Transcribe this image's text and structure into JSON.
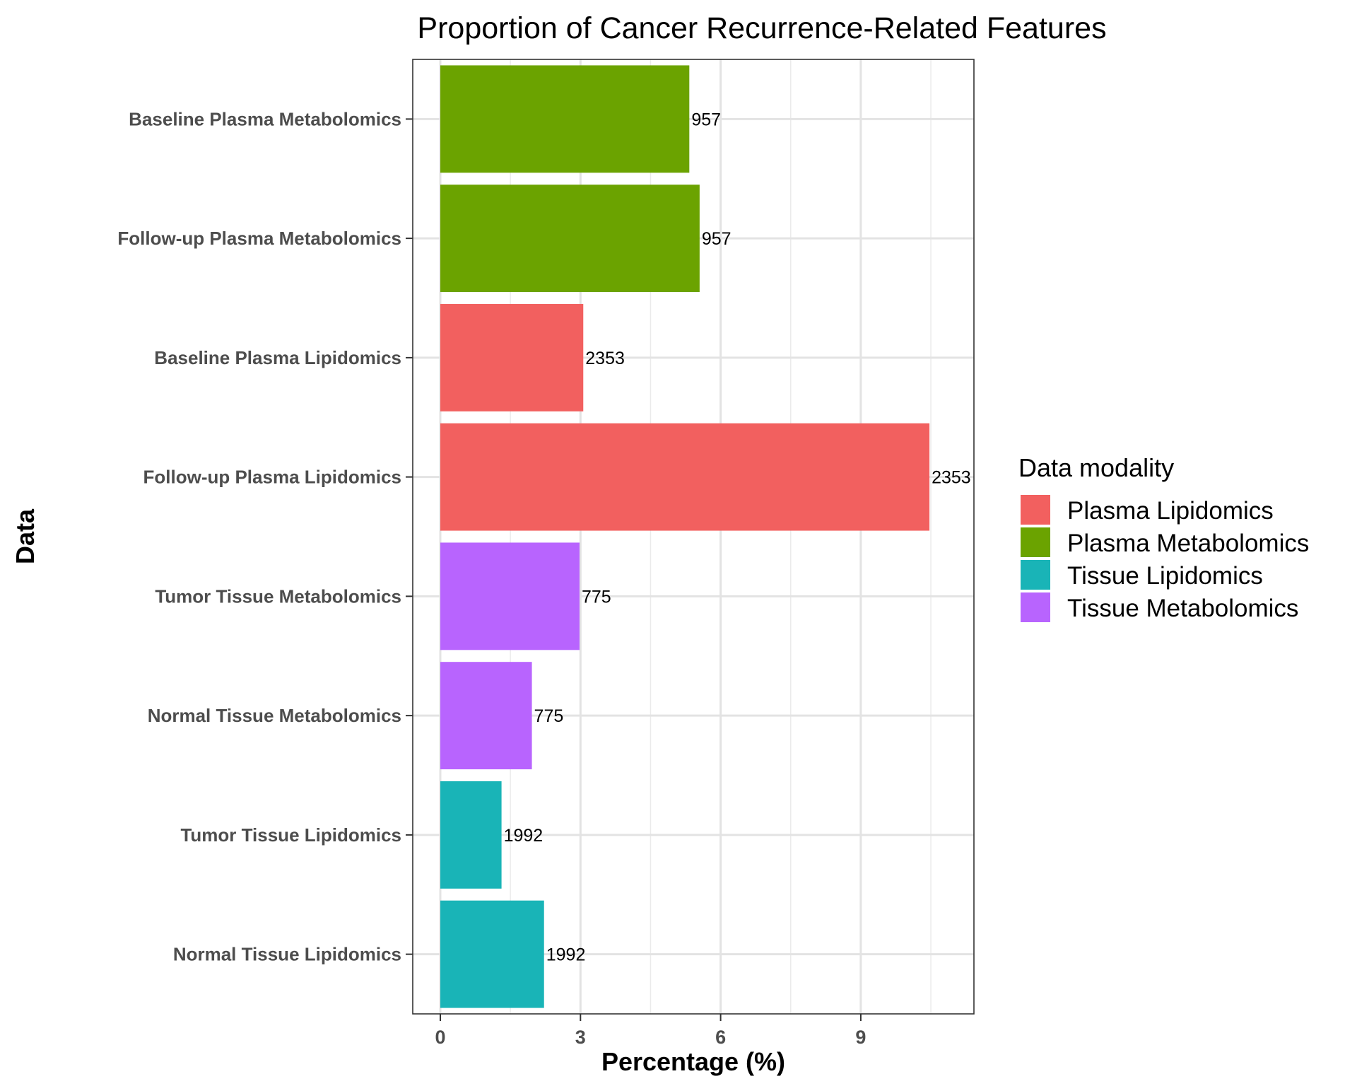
{
  "chart_data": {
    "type": "bar",
    "orientation": "horizontal",
    "title": "Proportion of Cancer Recurrence-Related Features",
    "xlabel": "Percentage (%)",
    "ylabel": "Data",
    "xlim": [
      -1,
      11.5
    ],
    "xticks": [
      0,
      3,
      6,
      9
    ],
    "grid": true,
    "legend_position": "right",
    "legend_title": "Data modality",
    "modalities": [
      {
        "name": "Plasma Lipidomics",
        "color": "#F2605F"
      },
      {
        "name": "Plasma Metabolomics",
        "color": "#6BA300"
      },
      {
        "name": "Tissue Lipidomics",
        "color": "#19B4B7"
      },
      {
        "name": "Tissue Metabolomics",
        "color": "#B864FE"
      }
    ],
    "categories": [
      "Baseline Plasma Metabolomics",
      "Follow-up Plasma Metabolomics",
      "Baseline Plasma Lipidomics",
      "Follow-up Plasma Lipidomics",
      "Tumor Tissue Metabolomics",
      "Normal Tissue Metabolomics",
      "Tumor Tissue Lipidomics",
      "Normal Tissue Lipidomics"
    ],
    "values": [
      5.33,
      5.55,
      3.06,
      10.47,
      2.98,
      1.96,
      1.31,
      2.22
    ],
    "bar_modality": [
      1,
      1,
      0,
      0,
      3,
      3,
      2,
      2
    ],
    "data_labels": [
      "957",
      "957",
      "2353",
      "2353",
      "775",
      "775",
      "1992",
      "1992"
    ]
  }
}
